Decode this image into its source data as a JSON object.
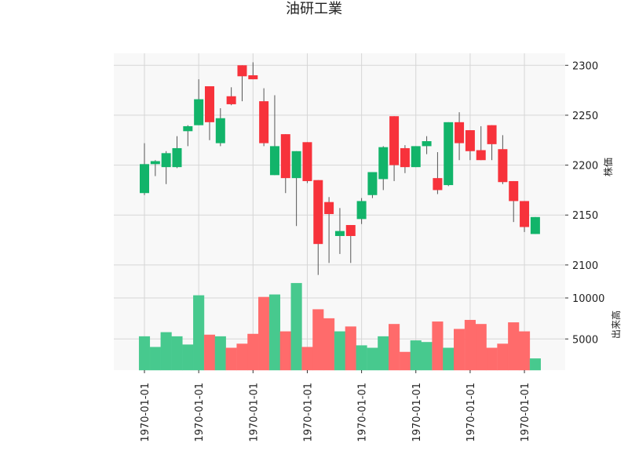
{
  "chart_data": {
    "type": "candlestick",
    "title": "油研工業",
    "price_axis_label": "株価",
    "volume_axis_label": "出来高",
    "price_ylim": [
      2085,
      2312
    ],
    "price_yticks": [
      2100,
      2150,
      2200,
      2250,
      2300
    ],
    "volume_ylim": [
      1200,
      12200
    ],
    "volume_yticks": [
      5000,
      10000
    ],
    "x_tick_labels": [
      "1970-01-01",
      "1970-01-01",
      "1970-01-01",
      "1970-01-01",
      "1970-01-01",
      "1970-01-01",
      "1970-01-01",
      "1970-01-01"
    ],
    "x_tick_positions": [
      0,
      5,
      10,
      15,
      20,
      25,
      30,
      35
    ],
    "colors": {
      "up": "#12b46a",
      "down": "#f7323b",
      "up_volume": "#47c98e",
      "down_volume": "#ff6b6b",
      "panel_bg": "#f8f8f8",
      "grid": "#d6d6d6"
    },
    "candles": [
      {
        "open": 2172,
        "high": 2222,
        "low": 2170,
        "close": 2201,
        "volume": 5300
      },
      {
        "open": 2201,
        "high": 2205,
        "low": 2189,
        "close": 2204,
        "volume": 4000
      },
      {
        "open": 2198,
        "high": 2214,
        "low": 2181,
        "close": 2212,
        "volume": 5800
      },
      {
        "open": 2198,
        "high": 2229,
        "low": 2197,
        "close": 2217,
        "volume": 5300
      },
      {
        "open": 2234,
        "high": 2240,
        "low": 2219,
        "close": 2239,
        "volume": 4300
      },
      {
        "open": 2240,
        "high": 2286,
        "low": 2240,
        "close": 2266,
        "volume": 10300
      },
      {
        "open": 2279,
        "high": 2279,
        "low": 2225,
        "close": 2243,
        "volume": 5500
      },
      {
        "open": 2222,
        "high": 2257,
        "low": 2219,
        "close": 2247,
        "volume": 5300
      },
      {
        "open": 2269,
        "high": 2278,
        "low": 2260,
        "close": 2261,
        "volume": 3900
      },
      {
        "open": 2300,
        "high": 2300,
        "low": 2264,
        "close": 2289,
        "volume": 4400
      },
      {
        "open": 2290,
        "high": 2303,
        "low": 2286,
        "close": 2286,
        "volume": 5600
      },
      {
        "open": 2264,
        "high": 2277,
        "low": 2219,
        "close": 2222,
        "volume": 10100
      },
      {
        "open": 2190,
        "high": 2270,
        "low": 2190,
        "close": 2219,
        "volume": 10400
      },
      {
        "open": 2231,
        "high": 2231,
        "low": 2172,
        "close": 2187,
        "volume": 5900
      },
      {
        "open": 2187,
        "high": 2214,
        "low": 2139,
        "close": 2214,
        "volume": 11800
      },
      {
        "open": 2223,
        "high": 2223,
        "low": 2182,
        "close": 2184,
        "volume": 4000
      },
      {
        "open": 2185,
        "high": 2185,
        "low": 2090,
        "close": 2121,
        "volume": 8600
      },
      {
        "open": 2163,
        "high": 2168,
        "low": 2102,
        "close": 2151,
        "volume": 7500
      },
      {
        "open": 2129,
        "high": 2157,
        "low": 2111,
        "close": 2134,
        "volume": 5900
      },
      {
        "open": 2140,
        "high": 2140,
        "low": 2102,
        "close": 2129,
        "volume": 6500
      },
      {
        "open": 2146,
        "high": 2167,
        "low": 2141,
        "close": 2164,
        "volume": 4200
      },
      {
        "open": 2170,
        "high": 2193,
        "low": 2167,
        "close": 2193,
        "volume": 3900
      },
      {
        "open": 2186,
        "high": 2219,
        "low": 2175,
        "close": 2218,
        "volume": 5300
      },
      {
        "open": 2249,
        "high": 2249,
        "low": 2184,
        "close": 2200,
        "volume": 6800
      },
      {
        "open": 2217,
        "high": 2220,
        "low": 2192,
        "close": 2198,
        "volume": 3400
      },
      {
        "open": 2198,
        "high": 2219,
        "low": 2198,
        "close": 2219,
        "volume": 4800
      },
      {
        "open": 2219,
        "high": 2229,
        "low": 2211,
        "close": 2224,
        "volume": 4600
      },
      {
        "open": 2187,
        "high": 2213,
        "low": 2171,
        "close": 2175,
        "volume": 7100
      },
      {
        "open": 2180,
        "high": 2243,
        "low": 2179,
        "close": 2243,
        "volume": 3900
      },
      {
        "open": 2243,
        "high": 2253,
        "low": 2205,
        "close": 2222,
        "volume": 6200
      },
      {
        "open": 2235,
        "high": 2235,
        "low": 2205,
        "close": 2214,
        "volume": 7300
      },
      {
        "open": 2215,
        "high": 2239,
        "low": 2205,
        "close": 2205,
        "volume": 6800
      },
      {
        "open": 2240,
        "high": 2240,
        "low": 2205,
        "close": 2221,
        "volume": 3900
      },
      {
        "open": 2216,
        "high": 2230,
        "low": 2181,
        "close": 2183,
        "volume": 4400
      },
      {
        "open": 2184,
        "high": 2184,
        "low": 2143,
        "close": 2164,
        "volume": 7000
      },
      {
        "open": 2164,
        "high": 2164,
        "low": 2133,
        "close": 2138,
        "volume": 5900
      },
      {
        "open": 2131,
        "high": 2148,
        "low": 2131,
        "close": 2148,
        "volume": 2600
      }
    ]
  }
}
